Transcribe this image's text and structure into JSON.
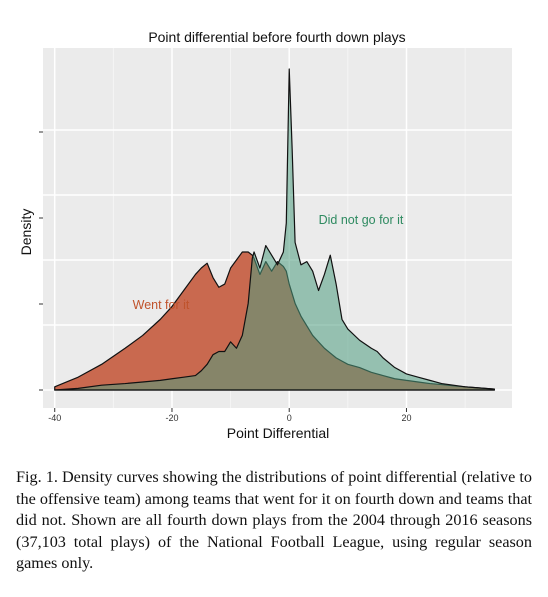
{
  "chart_data": {
    "type": "area",
    "title": "Point differential before fourth down plays",
    "xlabel": "Point Differential",
    "ylabel": "Density",
    "xlim": [
      -42,
      38
    ],
    "ylim": [
      0,
      1
    ],
    "xticks": [
      -40,
      -20,
      0,
      20
    ],
    "grid": true,
    "x": [
      -40,
      -36,
      -32,
      -28,
      -25,
      -22,
      -20,
      -18,
      -16,
      -15,
      -14,
      -13,
      -12,
      -11,
      -10,
      -9,
      -8,
      -7,
      -6.3,
      -6,
      -5,
      -4,
      -3,
      -2,
      -1,
      -0.5,
      0,
      0.5,
      1,
      2,
      3,
      4,
      5,
      6,
      7,
      8,
      9,
      10,
      12,
      14,
      15,
      16,
      18,
      20,
      22,
      24,
      26,
      28,
      30,
      32,
      35
    ],
    "series": [
      {
        "name": "Went for it",
        "color": "#c9694f",
        "values": [
          0.01,
          0.04,
          0.08,
          0.13,
          0.17,
          0.22,
          0.26,
          0.31,
          0.36,
          0.38,
          0.395,
          0.35,
          0.32,
          0.33,
          0.38,
          0.405,
          0.43,
          0.43,
          0.42,
          0.41,
          0.36,
          0.4,
          0.37,
          0.4,
          0.385,
          0.37,
          0.33,
          0.3,
          0.27,
          0.23,
          0.2,
          0.17,
          0.15,
          0.13,
          0.115,
          0.1,
          0.09,
          0.08,
          0.07,
          0.055,
          0.05,
          0.045,
          0.035,
          0.03,
          0.025,
          0.02,
          0.017,
          0.013,
          0.01,
          0.007,
          0.003
        ]
      },
      {
        "name": "Did not go for it",
        "color": "#4f9c80",
        "values": [
          0.0,
          0.005,
          0.015,
          0.02,
          0.025,
          0.03,
          0.035,
          0.04,
          0.045,
          0.06,
          0.08,
          0.11,
          0.12,
          0.12,
          0.15,
          0.13,
          0.17,
          0.27,
          0.41,
          0.43,
          0.38,
          0.45,
          0.42,
          0.39,
          0.43,
          0.52,
          1.0,
          0.75,
          0.46,
          0.39,
          0.4,
          0.37,
          0.31,
          0.36,
          0.42,
          0.33,
          0.22,
          0.19,
          0.155,
          0.13,
          0.12,
          0.1,
          0.07,
          0.05,
          0.04,
          0.03,
          0.02,
          0.015,
          0.01,
          0.007,
          0.003
        ]
      }
    ]
  },
  "caption": "Fig. 1. Density curves showing the distributions of point differential (relative to the offensive team) among teams that went for it on fourth down and teams that did not. Shown are all fourth down plays from the 2004 through 2016 seasons (37,103 total plays) of the National Football League, using regular season games only."
}
